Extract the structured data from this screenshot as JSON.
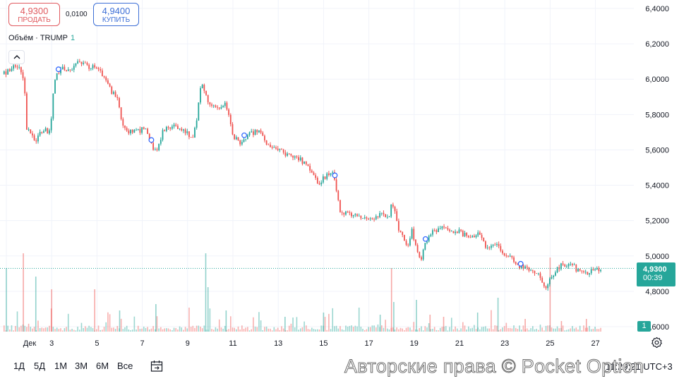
{
  "trade": {
    "sell": {
      "price": "4,9300",
      "label": "ПРОДАТЬ"
    },
    "spread": "0,0100",
    "buy": {
      "price": "4,9400",
      "label": "КУПИТЬ"
    }
  },
  "legend": {
    "text": "Объём · TRUMP",
    "value": "1"
  },
  "collapse_icon": "chevron-up-icon",
  "price_tag": {
    "price": "4,9300",
    "countdown": "00:39"
  },
  "volume_tag": "1",
  "bottom_bar": {
    "ranges": [
      "1Д",
      "5Д",
      "1М",
      "3М",
      "6М",
      "Все"
    ],
    "clock": "11:29:21 UTC+3"
  },
  "watermark": "Авторские права © Pocket Option",
  "colors": {
    "up": "#26a69a",
    "down": "#ef5350",
    "grid": "#f0f3fa"
  },
  "chart_data": {
    "type": "candlestick",
    "symbol": "TRUMP",
    "current_price": 4.93,
    "ylim": [
      4.6,
      6.4
    ],
    "y_ticks": [
      "6,4000",
      "6,2000",
      "6,0000",
      "5,8000",
      "5,6000",
      "5,4000",
      "5,2000",
      "5,0000",
      "4,8000",
      "4,6000"
    ],
    "x_ticks": [
      "Дек",
      "3",
      "5",
      "7",
      "9",
      "11",
      "13",
      "15",
      "17",
      "19",
      "21",
      "23",
      "25",
      "27"
    ],
    "grid": true,
    "price_path": [
      [
        1.0,
        6.03
      ],
      [
        1.3,
        6.08
      ],
      [
        1.6,
        6.06
      ],
      [
        1.8,
        6.0
      ],
      [
        1.85,
        5.72
      ],
      [
        2.2,
        5.68
      ],
      [
        2.3,
        5.64
      ],
      [
        2.6,
        5.72
      ],
      [
        2.9,
        5.7
      ],
      [
        3.0,
        5.78
      ],
      [
        3.1,
        6.0
      ],
      [
        3.4,
        6.06
      ],
      [
        3.8,
        6.04
      ],
      [
        4.1,
        6.1
      ],
      [
        4.5,
        6.08
      ],
      [
        5.1,
        6.05
      ],
      [
        5.5,
        5.96
      ],
      [
        5.9,
        5.88
      ],
      [
        6.1,
        5.76
      ],
      [
        6.3,
        5.7
      ],
      [
        6.7,
        5.7
      ],
      [
        7.1,
        5.72
      ],
      [
        7.4,
        5.64
      ],
      [
        7.6,
        5.58
      ],
      [
        7.9,
        5.7
      ],
      [
        8.3,
        5.74
      ],
      [
        8.8,
        5.72
      ],
      [
        9.2,
        5.66
      ],
      [
        9.4,
        5.78
      ],
      [
        9.6,
        5.98
      ],
      [
        9.9,
        5.88
      ],
      [
        10.3,
        5.84
      ],
      [
        10.7,
        5.86
      ],
      [
        11.0,
        5.68
      ],
      [
        11.3,
        5.64
      ],
      [
        11.6,
        5.68
      ],
      [
        12.0,
        5.7
      ],
      [
        12.3,
        5.7
      ],
      [
        12.5,
        5.62
      ],
      [
        12.9,
        5.6
      ],
      [
        13.3,
        5.58
      ],
      [
        13.8,
        5.56
      ],
      [
        14.2,
        5.52
      ],
      [
        14.6,
        5.44
      ],
      [
        14.8,
        5.4
      ],
      [
        15.0,
        5.44
      ],
      [
        15.3,
        5.48
      ],
      [
        15.5,
        5.44
      ],
      [
        15.7,
        5.26
      ],
      [
        15.9,
        5.24
      ],
      [
        16.3,
        5.24
      ],
      [
        16.7,
        5.22
      ],
      [
        17.0,
        5.2
      ],
      [
        17.3,
        5.22
      ],
      [
        17.6,
        5.24
      ],
      [
        17.9,
        5.22
      ],
      [
        18.0,
        5.32
      ],
      [
        18.3,
        5.16
      ],
      [
        18.7,
        5.06
      ],
      [
        18.9,
        5.14
      ],
      [
        19.2,
        5.0
      ],
      [
        19.3,
        4.98
      ],
      [
        19.5,
        5.08
      ],
      [
        19.8,
        5.14
      ],
      [
        20.2,
        5.16
      ],
      [
        20.8,
        5.12
      ],
      [
        21.0,
        5.14
      ],
      [
        21.4,
        5.1
      ],
      [
        21.8,
        5.12
      ],
      [
        22.0,
        5.1
      ],
      [
        22.2,
        5.04
      ],
      [
        22.6,
        5.06
      ],
      [
        22.9,
        5.02
      ],
      [
        23.3,
        4.98
      ],
      [
        23.7,
        4.94
      ],
      [
        24.2,
        4.92
      ],
      [
        24.5,
        4.9
      ],
      [
        24.8,
        4.8
      ],
      [
        25.0,
        4.88
      ],
      [
        25.4,
        4.94
      ],
      [
        25.9,
        4.96
      ],
      [
        26.2,
        4.92
      ],
      [
        26.6,
        4.9
      ],
      [
        26.9,
        4.92
      ],
      [
        27.3,
        4.93
      ]
    ],
    "volume_max": 4,
    "volume_spikes": [
      [
        1.0,
        3.0
      ],
      [
        1.75,
        3.7
      ],
      [
        2.3,
        2.6
      ],
      [
        3.0,
        2.0
      ],
      [
        4.9,
        2.0
      ],
      [
        6.0,
        1.0
      ],
      [
        7.6,
        1.3
      ],
      [
        9.8,
        3.7
      ],
      [
        9.9,
        2.1
      ],
      [
        10.7,
        1.0
      ],
      [
        13.3,
        0.7
      ],
      [
        15.0,
        0.9
      ],
      [
        17.5,
        0.8
      ],
      [
        18.0,
        3.0
      ],
      [
        18.1,
        1.4
      ],
      [
        19.1,
        1.5
      ],
      [
        19.7,
        0.8
      ],
      [
        20.3,
        0.7
      ],
      [
        21.8,
        0.9
      ],
      [
        22.7,
        1.6
      ],
      [
        23.9,
        0.6
      ],
      [
        25.0,
        3.5
      ],
      [
        25.5,
        0.5
      ],
      [
        26.6,
        0.6
      ]
    ]
  }
}
